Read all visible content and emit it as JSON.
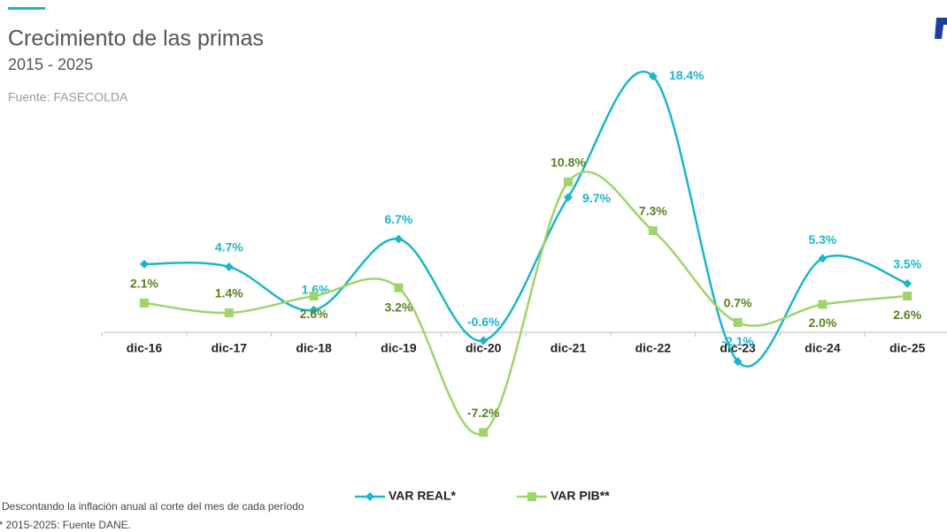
{
  "chart_data": {
    "type": "line",
    "title": "Crecimiento de las primas",
    "subtitle": "2015 - 2025",
    "source": "Fuente: FASECOLDA",
    "notes": [
      "* Descontando la inflación anual al corte del mes de cada período",
      "** 2015-2025: Fuente DANE."
    ],
    "categories": [
      "dic-16",
      "dic-17",
      "dic-18",
      "dic-19",
      "dic-20",
      "dic-21",
      "dic-22",
      "dic-23",
      "dic-24",
      "dic-25"
    ],
    "ylim": [
      -8,
      20
    ],
    "series": [
      {
        "name": "VAR REAL*",
        "color": "#1bb6c8",
        "marker": "diamond",
        "values": [
          4.9,
          4.7,
          1.6,
          6.7,
          -0.6,
          9.7,
          18.4,
          -2.1,
          5.3,
          3.5
        ],
        "value_labels": [
          null,
          "4.7%",
          "1.6%",
          "6.7%",
          "-0.6%",
          "9.7%",
          "18.4%",
          "-2.1%",
          "5.3%",
          "3.5%"
        ]
      },
      {
        "name": "VAR PIB**",
        "color": "#9fd46a",
        "marker": "square",
        "label_color": "#5b7f1f",
        "values": [
          2.1,
          1.4,
          2.6,
          3.2,
          -7.2,
          10.8,
          7.3,
          0.7,
          2.0,
          2.6
        ],
        "value_labels": [
          "2.1%",
          "1.4%",
          "2.6%",
          "3.2%",
          "-7.2%",
          "10.8%",
          "7.3%",
          "0.7%",
          "2.0%",
          "2.6%"
        ]
      }
    ]
  }
}
